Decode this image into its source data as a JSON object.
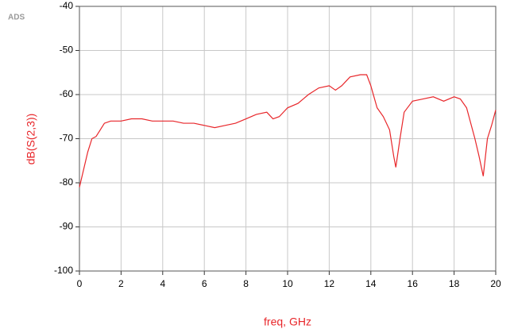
{
  "chart_data": {
    "type": "line",
    "corner_label": "ADS",
    "xlabel": "freq, GHz",
    "ylabel": "dB(S(2,3))",
    "x": [
      0,
      0.2,
      0.4,
      0.6,
      0.8,
      1.0,
      1.2,
      1.5,
      2,
      2.5,
      3,
      3.5,
      4,
      4.5,
      5,
      5.5,
      6,
      6.5,
      7,
      7.5,
      8,
      8.5,
      9,
      9.3,
      9.6,
      10,
      10.5,
      11,
      11.5,
      12,
      12.3,
      12.6,
      13,
      13.5,
      13.8,
      14,
      14.3,
      14.6,
      14.9,
      15.1,
      15.2,
      15.4,
      15.6,
      16,
      16.5,
      17,
      17.5,
      18,
      18.3,
      18.6,
      19,
      19.2,
      19.4,
      19.6,
      19.8,
      20
    ],
    "series": [
      {
        "name": "dB(S(2,3))",
        "color": "#e8262a",
        "values": [
          -81,
          -77,
          -73,
          -70,
          -69.5,
          -68,
          -66.5,
          -66,
          -66,
          -65.5,
          -65.5,
          -66,
          -66,
          -66,
          -66.5,
          -66.5,
          -67,
          -67.5,
          -67,
          -66.5,
          -65.5,
          -64.5,
          -64,
          -65.5,
          -65,
          -63,
          -62,
          -60,
          -58.5,
          -58,
          -59,
          -58,
          -56,
          -55.5,
          -55.5,
          -58,
          -63,
          -65,
          -68,
          -74,
          -76.5,
          -70,
          -64,
          -61.5,
          -61,
          -60.5,
          -61.5,
          -60.5,
          -61,
          -63,
          -70,
          -74,
          -78.5,
          -70,
          -67,
          -63.5
        ]
      }
    ],
    "xlim": [
      0,
      20
    ],
    "xticks": [
      0,
      2,
      4,
      6,
      8,
      10,
      12,
      14,
      16,
      18,
      20
    ],
    "ylim": [
      -100,
      -40
    ],
    "yticks": [
      -100,
      -90,
      -80,
      -70,
      -60,
      -50,
      -40
    ],
    "grid": true
  }
}
